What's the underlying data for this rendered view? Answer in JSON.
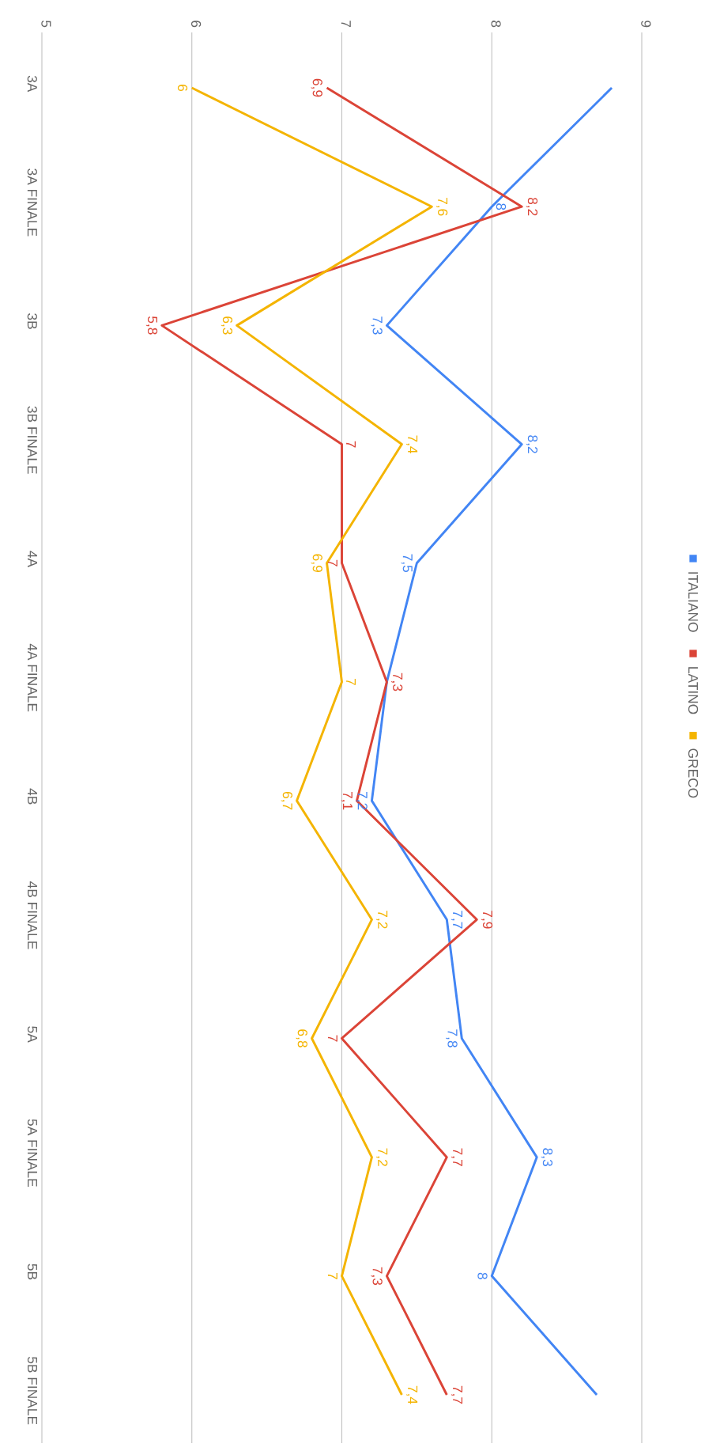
{
  "chart_data": {
    "type": "line",
    "orientation": "horizontal",
    "categories": [
      "3A",
      "3A FINALE",
      "3B",
      "3B FINALE",
      "4A",
      "4A FINALE",
      "4B",
      "4B FINALE",
      "5A",
      "5A FINALE",
      "5B",
      "5B FINALE"
    ],
    "series": [
      {
        "name": "ITALIANO",
        "color": "#4285f4",
        "values": [
          8.8,
          8,
          7.3,
          8.2,
          7.5,
          7.3,
          7.2,
          7.7,
          7.8,
          8.3,
          8,
          8.7
        ],
        "value_labels": [
          null,
          "8",
          "7,3",
          "8,2",
          "7,5",
          null,
          "7,2",
          "7,7",
          "7,8",
          "8,3",
          "8",
          null
        ]
      },
      {
        "name": "LATINO",
        "color": "#db4437",
        "values": [
          6.9,
          8.2,
          5.8,
          7,
          7,
          7.3,
          7.1,
          7.9,
          7,
          7.7,
          7.3,
          7.7
        ],
        "value_labels": [
          "6,9",
          "8,2",
          "5,8",
          "7",
          "7",
          "7,3",
          "7,1",
          "7,9",
          "7",
          "7,7",
          "7,3",
          "7,7"
        ]
      },
      {
        "name": "GRECO",
        "color": "#f4b400",
        "values": [
          6,
          7.6,
          6.3,
          7.4,
          6.9,
          7,
          6.7,
          7.2,
          6.8,
          7.2,
          7,
          7.4
        ],
        "value_labels": [
          "6",
          "7,6",
          "6,3",
          "7,4",
          "6,9",
          "7",
          "6,7",
          "7,2",
          "6,8",
          "7,2",
          "7",
          "7,4"
        ]
      }
    ],
    "xlim": [
      5,
      9
    ],
    "xticks": [
      5,
      6,
      7,
      8,
      9
    ],
    "grid": "x",
    "legend": "right",
    "marker": "none",
    "line_style": "solid"
  }
}
